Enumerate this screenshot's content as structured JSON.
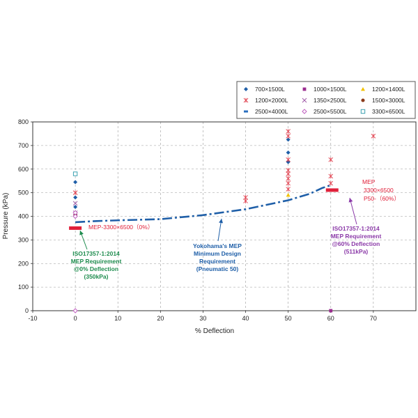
{
  "chart_data": {
    "type": "scatter",
    "xlabel": "% Deflection",
    "ylabel": "Pressure (kPa)",
    "xlim": [
      -10,
      80
    ],
    "ylim": [
      0,
      800
    ],
    "xticks": [
      "-10",
      "0",
      "10",
      "20",
      "30",
      "40",
      "50",
      "60",
      "70"
    ],
    "yticks": [
      "0",
      "100",
      "200",
      "300",
      "400",
      "500",
      "600",
      "700",
      "800"
    ],
    "grid": "dashed",
    "legend_placement": "top-right",
    "legend": [
      {
        "label": "700×1500L",
        "marker": "diamond",
        "color": "#1f5fa8"
      },
      {
        "label": "1000×1500L",
        "marker": "square",
        "color": "#9b2d8f"
      },
      {
        "label": "1200×1400L",
        "marker": "triangle",
        "color": "#f2c200"
      },
      {
        "label": "1200×2000L",
        "marker": "star",
        "color": "#e0414f"
      },
      {
        "label": "1350×2500L",
        "marker": "x",
        "color": "#a05aa8"
      },
      {
        "label": "1500×3000L",
        "marker": "circle",
        "color": "#8a3a1a"
      },
      {
        "label": "2500×4000L",
        "marker": "dash",
        "color": "#2a6fbf"
      },
      {
        "label": "2500×5500L",
        "marker": "open-diamond",
        "color": "#c060c0"
      },
      {
        "label": "3300×6500L",
        "marker": "open-square",
        "color": "#3aa0b0"
      }
    ],
    "series": [
      {
        "name": "700×1500L",
        "marker": "diamond",
        "color": "#1f5fa8",
        "points": [
          [
            0,
            545
          ],
          [
            0,
            480
          ],
          [
            0,
            440
          ],
          [
            50,
            725
          ],
          [
            50,
            670
          ],
          [
            50,
            630
          ]
        ]
      },
      {
        "name": "1000×1500L",
        "marker": "square",
        "color": "#9b2d8f",
        "points": [
          [
            60,
            0
          ]
        ]
      },
      {
        "name": "1200×1400L",
        "marker": "triangle",
        "color": "#f2c200",
        "points": [
          [
            50,
            490
          ]
        ]
      },
      {
        "name": "1200×2000L",
        "marker": "star",
        "color": "#e0414f",
        "points": [
          [
            0,
            500
          ],
          [
            40,
            480
          ],
          [
            40,
            465
          ],
          [
            50,
            760
          ],
          [
            50,
            740
          ],
          [
            50,
            640
          ],
          [
            50,
            595
          ],
          [
            50,
            580
          ],
          [
            50,
            560
          ],
          [
            50,
            540
          ],
          [
            50,
            515
          ],
          [
            60,
            640
          ],
          [
            60,
            570
          ],
          [
            60,
            540
          ],
          [
            70,
            740
          ]
        ]
      },
      {
        "name": "1350×2500L",
        "marker": "x",
        "color": "#a05aa8",
        "points": [
          [
            0,
            455
          ],
          [
            0,
            415
          ]
        ]
      },
      {
        "name": "1500×3000L",
        "marker": "circle",
        "color": "#8a3a1a",
        "points": [
          [
            0,
            405
          ]
        ]
      },
      {
        "name": "2500×5500L",
        "marker": "open-diamond",
        "color": "#c060c0",
        "points": [
          [
            0,
            415
          ],
          [
            0,
            400
          ],
          [
            0,
            0
          ]
        ]
      },
      {
        "name": "3300×6500L",
        "marker": "open-square",
        "color": "#3aa0b0",
        "points": [
          [
            0,
            580
          ]
        ]
      }
    ],
    "mep_curve": {
      "color": "#1f5fa8",
      "points": [
        [
          0,
          375
        ],
        [
          5,
          380
        ],
        [
          10,
          383
        ],
        [
          20,
          388
        ],
        [
          30,
          405
        ],
        [
          40,
          430
        ],
        [
          50,
          468
        ],
        [
          55,
          495
        ],
        [
          58,
          520
        ],
        [
          60,
          532
        ]
      ]
    },
    "requirements": [
      {
        "x": 0,
        "y": 350,
        "color": "#e0203a"
      },
      {
        "x": 60,
        "y": 511,
        "color": "#e0203a"
      }
    ],
    "annotations": {
      "mep_0": "MEP-3300×6500（0%）",
      "iso_0": [
        "ISO17357-1:2014",
        "MEP Requirement",
        "@0% Deflection",
        "(350kPa)"
      ],
      "yokohama": [
        "Yokohama's MEP",
        "Minimum Design",
        "Requirement",
        "(Pneumatic 50)"
      ],
      "mep_60": [
        "MEP",
        "3300×6500",
        "P50-（60%）"
      ],
      "iso_60": [
        "ISO17357-1:2014",
        "MEP Requirement",
        "@60% Deflection",
        "(511kPa)"
      ]
    }
  }
}
